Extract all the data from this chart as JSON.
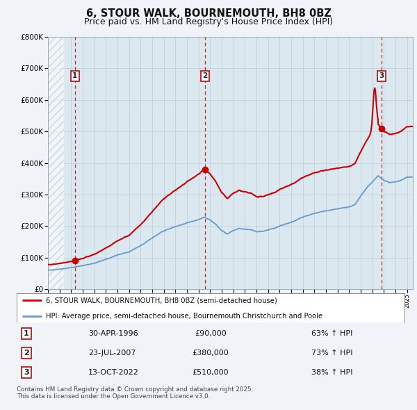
{
  "title": "6, STOUR WALK, BOURNEMOUTH, BH8 0BZ",
  "subtitle": "Price paid vs. HM Land Registry's House Price Index (HPI)",
  "legend_line1": "6, STOUR WALK, BOURNEMOUTH, BH8 0BZ (semi-detached house)",
  "legend_line2": "HPI: Average price, semi-detached house, Bournemouth Christchurch and Poole",
  "footnote": "Contains HM Land Registry data © Crown copyright and database right 2025.\nThis data is licensed under the Open Government Licence v3.0.",
  "transactions": [
    {
      "num": 1,
      "date": "30-APR-1996",
      "price": 90000,
      "pct": "63% ↑ HPI",
      "year": 1996.33
    },
    {
      "num": 2,
      "date": "23-JUL-2007",
      "price": 380000,
      "pct": "73% ↑ HPI",
      "year": 2007.56
    },
    {
      "num": 3,
      "date": "13-OCT-2022",
      "price": 510000,
      "pct": "38% ↑ HPI",
      "year": 2022.79
    }
  ],
  "ylim": [
    0,
    800000
  ],
  "xlim_start": 1994.0,
  "xlim_end": 2025.5,
  "hatch_end": 1995.4,
  "bg_color": "#f0f4f8",
  "plot_bg": "#dce8f0",
  "grid_color": "#b8ccd8",
  "hatch_color": "#b0c4d4",
  "red_line_color": "#cc0000",
  "blue_line_color": "#6699cc",
  "dashed_line_color": "#cc2222",
  "red_dot_color": "#cc0000",
  "title_fontsize": 10.5,
  "subtitle_fontsize": 9.0,
  "yticks": [
    0,
    100000,
    200000,
    300000,
    400000,
    500000,
    600000,
    700000,
    800000
  ],
  "ylabels": [
    "£0",
    "£100K",
    "£200K",
    "£300K",
    "£400K",
    "£500K",
    "£600K",
    "£700K",
    "£800K"
  ]
}
